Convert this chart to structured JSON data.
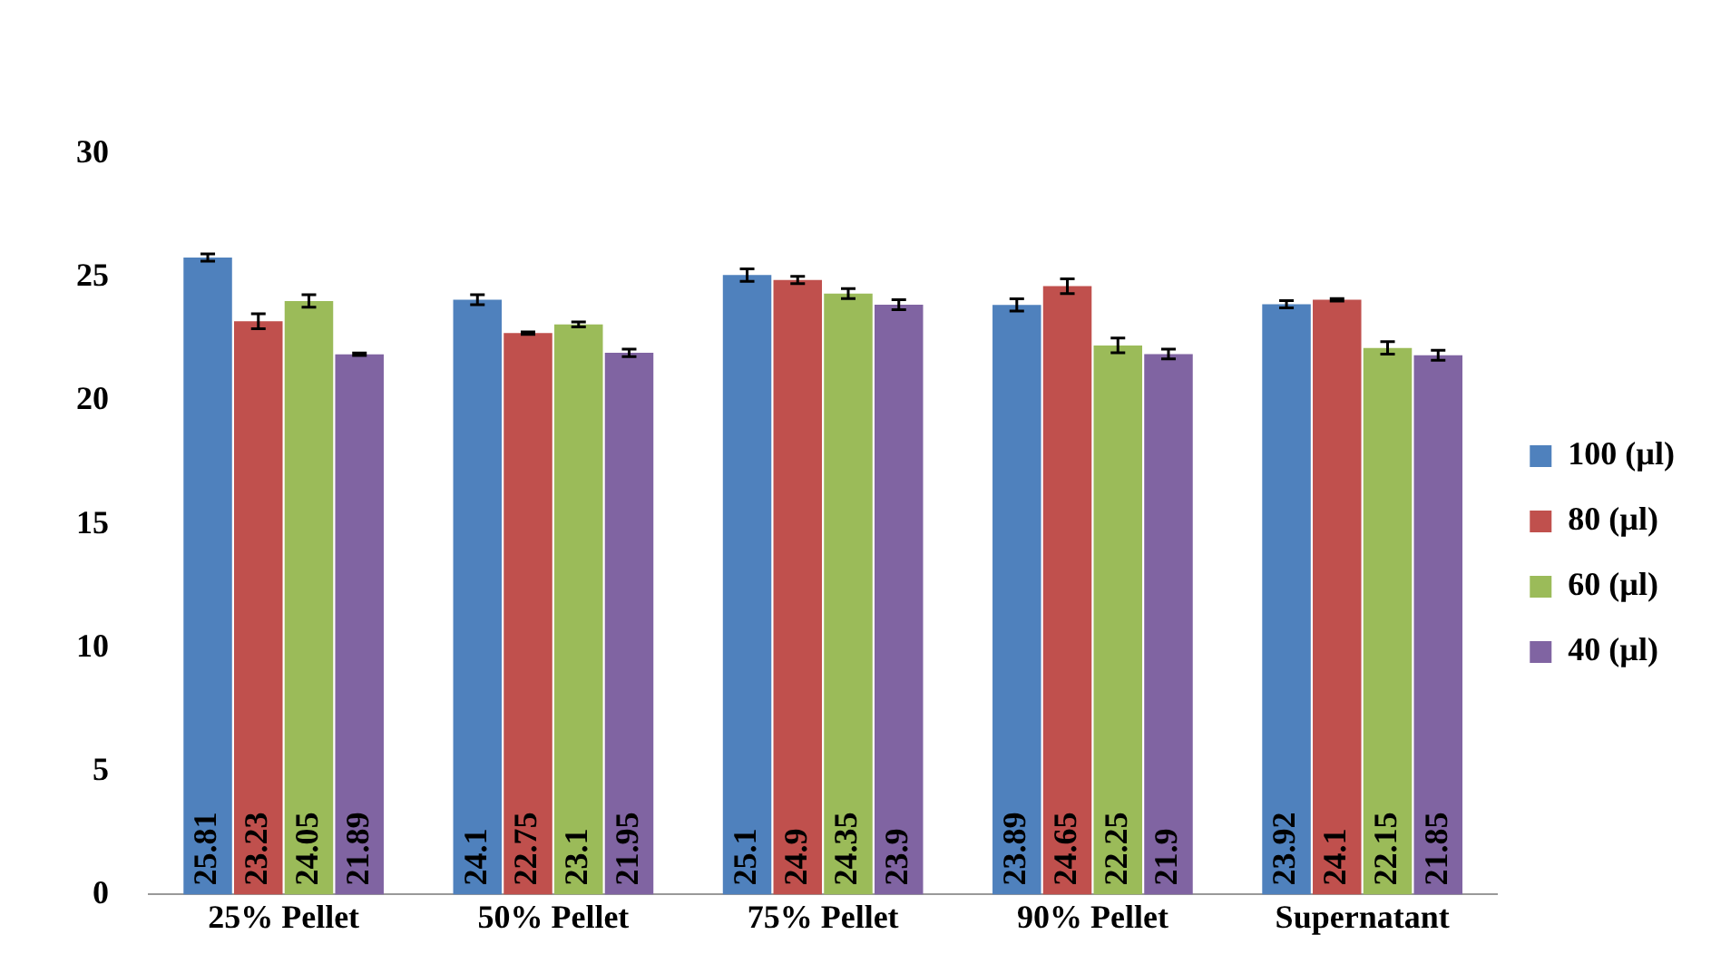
{
  "chart_data": {
    "type": "bar",
    "categories": [
      "25% Pellet",
      "50% Pellet",
      "75% Pellet",
      "90% Pellet",
      "Supernatant"
    ],
    "series": [
      {
        "name": "100 (µl)",
        "color": "#4f81bd",
        "values": [
          25.81,
          24.1,
          25.1,
          23.89,
          23.92
        ],
        "errors": [
          0.15,
          0.2,
          0.25,
          0.25,
          0.15
        ]
      },
      {
        "name": "80 (µl)",
        "color": "#c0504d",
        "values": [
          23.23,
          22.75,
          24.9,
          24.65,
          24.1
        ],
        "errors": [
          0.3,
          0.05,
          0.15,
          0.3,
          0.05
        ]
      },
      {
        "name": "60 (µl)",
        "color": "#9bbb59",
        "values": [
          24.05,
          23.1,
          24.35,
          22.25,
          22.15
        ],
        "errors": [
          0.25,
          0.1,
          0.2,
          0.3,
          0.25
        ]
      },
      {
        "name": "40 (µl)",
        "color": "#8064a2",
        "values": [
          21.89,
          21.95,
          23.9,
          21.9,
          21.85
        ],
        "errors": [
          0.05,
          0.15,
          0.2,
          0.2,
          0.2
        ]
      }
    ],
    "ylim": [
      0,
      30
    ],
    "yticks": [
      0,
      5,
      10,
      15,
      20,
      25,
      30
    ],
    "grid": false,
    "legend": "right",
    "data_labels": true
  }
}
